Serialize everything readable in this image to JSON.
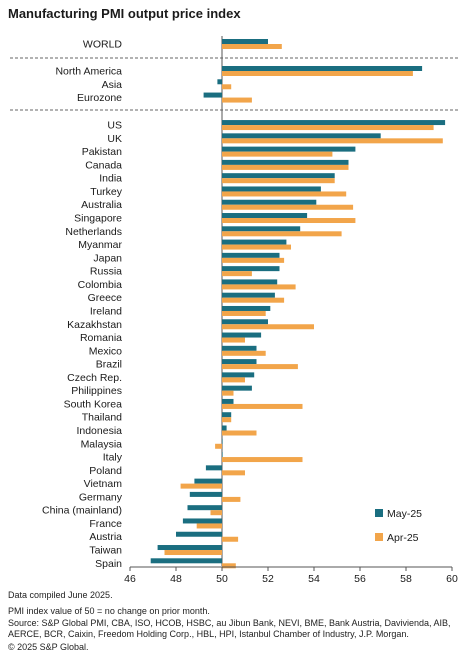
{
  "title": "Manufacturing PMI output price index",
  "footer": {
    "compiled": "Data compiled June 2025.",
    "note": "PMI index value of 50 = no change on prior month.",
    "source": "Source: S&P Global PMI, CBA, ISO, HCOB, HSBC, au Jibun Bank, NEVI, BME, Bank Austria, Davivienda, AIB, AERCE, BCR, Caixin, Freedom Holding Corp., HBL, HPI, Istanbul Chamber of Industry, J.P. Morgan.",
    "copyright": "© 2025 S&P Global."
  },
  "colors": {
    "may": "#1a6e80",
    "apr": "#f2a54a",
    "axis": "#555555",
    "divider": "#666666"
  },
  "chart_data": {
    "type": "bar",
    "orientation": "horizontal",
    "title": "Manufacturing PMI output price index",
    "xlim": [
      46,
      60
    ],
    "xticks": [
      "46",
      "48",
      "50",
      "52",
      "54",
      "56",
      "58",
      "60"
    ],
    "baseline": 50,
    "categories": [
      "WORLD",
      "North America",
      "Asia",
      "Eurozone",
      "US",
      "UK",
      "Pakistan",
      "Canada",
      "India",
      "Turkey",
      "Australia",
      "Singapore",
      "Netherlands",
      "Myanmar",
      "Japan",
      "Russia",
      "Colombia",
      "Greece",
      "Ireland",
      "Kazakhstan",
      "Romania",
      "Mexico",
      "Brazil",
      "Czech Rep.",
      "Philippines",
      "South Korea",
      "Thailand",
      "Indonesia",
      "Malaysia",
      "Italy",
      "Poland",
      "Vietnam",
      "Germany",
      "China (mainland)",
      "France",
      "Austria",
      "Taiwan",
      "Spain"
    ],
    "groups_divider_after": [
      0,
      3
    ],
    "series": [
      {
        "name": "May-25",
        "values": [
          52.0,
          58.7,
          49.8,
          49.2,
          59.7,
          56.9,
          55.8,
          55.5,
          54.9,
          54.3,
          54.1,
          53.7,
          53.4,
          52.8,
          52.5,
          52.5,
          52.4,
          52.3,
          52.1,
          52.0,
          51.7,
          51.5,
          51.5,
          51.4,
          51.3,
          50.5,
          50.4,
          50.2,
          50.0,
          50.0,
          49.3,
          48.8,
          48.6,
          48.5,
          48.3,
          48.0,
          47.2,
          46.9
        ]
      },
      {
        "name": "Apr-25",
        "values": [
          52.6,
          58.3,
          50.4,
          51.3,
          59.2,
          59.6,
          54.8,
          55.5,
          54.9,
          55.4,
          55.7,
          55.8,
          55.2,
          53.0,
          52.7,
          51.3,
          53.2,
          52.7,
          51.9,
          54.0,
          51.0,
          51.9,
          53.3,
          51.0,
          50.5,
          53.5,
          50.4,
          51.5,
          49.7,
          53.5,
          51.0,
          48.2,
          50.8,
          49.5,
          48.9,
          50.7,
          47.5,
          50.6
        ]
      }
    ],
    "legend": "bottom-right",
    "grid": false
  }
}
